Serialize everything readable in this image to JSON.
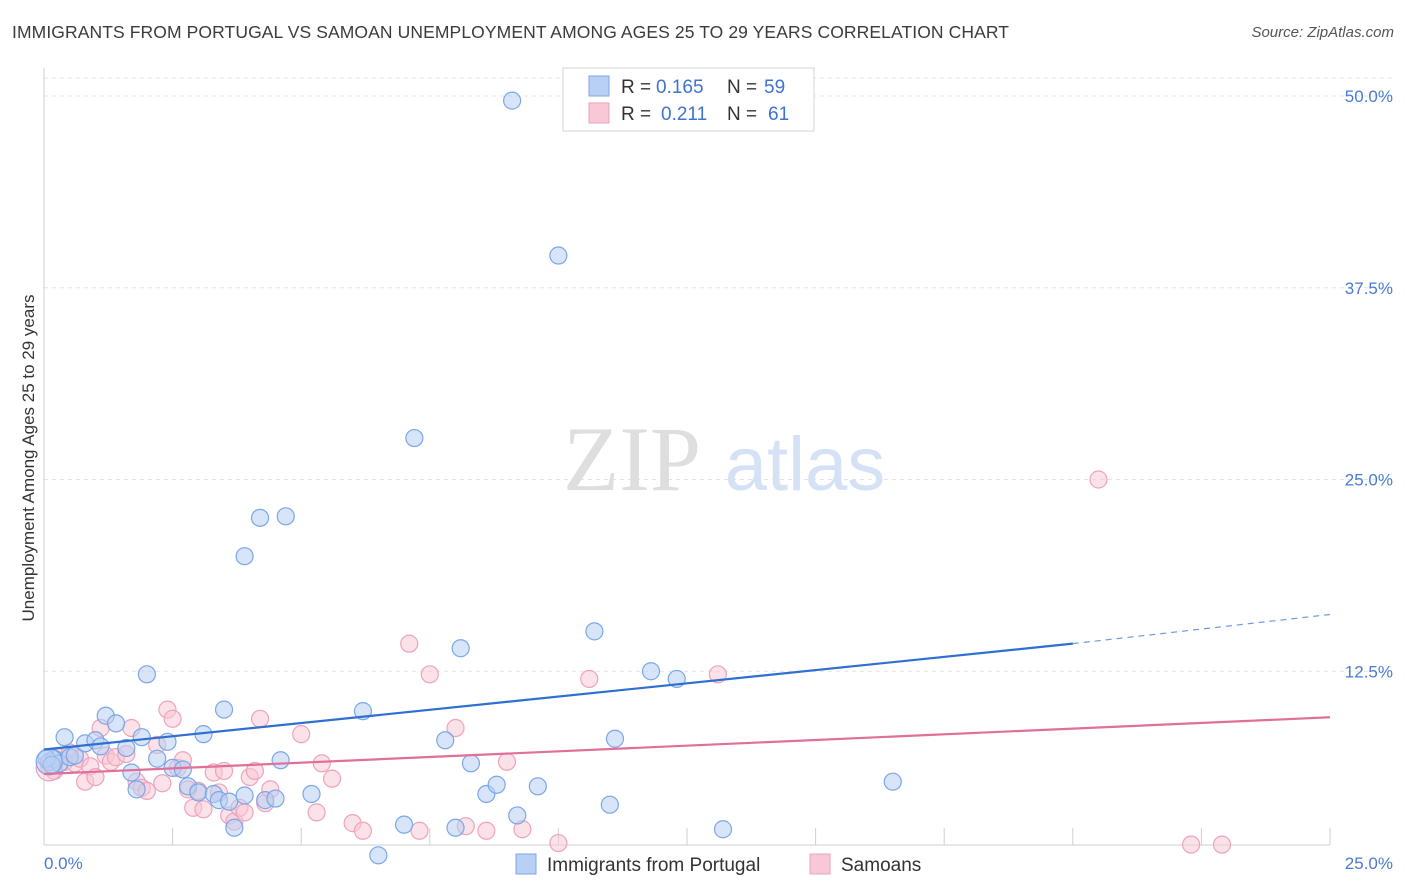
{
  "title": "IMMIGRANTS FROM PORTUGAL VS SAMOAN UNEMPLOYMENT AMONG AGES 25 TO 29 YEARS CORRELATION CHART",
  "source": "Source: ZipAtlas.com",
  "watermark": {
    "zip": "ZIP",
    "atlas": "atlas"
  },
  "chart_data": {
    "type": "scatter",
    "ylabel": "Unemployment Among Ages 25 to 29 years",
    "xlim": [
      0,
      25
    ],
    "ylim": [
      0,
      50
    ],
    "x_tick_labels": [
      "0.0%",
      "25.0%"
    ],
    "y_ticks": [
      12.5,
      25.0,
      37.5,
      50.0
    ],
    "y_tick_labels": [
      "12.5%",
      "25.0%",
      "37.5%",
      "50.0%"
    ],
    "legend": [
      {
        "r_label": "R =",
        "r_value": "0.165",
        "n_label": "N =",
        "n_value": "59"
      },
      {
        "r_label": "R =",
        "r_value": "0.211",
        "n_label": "N =",
        "n_value": "61"
      }
    ],
    "series": [
      {
        "name": "Immigrants from Portugal",
        "color": "#7aa7e8",
        "fill": "#b8d0f3",
        "line_color": "#2f6fd0",
        "trend": {
          "x0": 0,
          "y0": 7.4,
          "x1": 20,
          "y1": 14.3,
          "dash_to_x": 25,
          "dash_to_y": 16.2
        },
        "points": [
          [
            0.1,
            6.6
          ],
          [
            0.2,
            6.8
          ],
          [
            0.3,
            6.5
          ],
          [
            0.4,
            8.2
          ],
          [
            0.5,
            6.9
          ],
          [
            0.6,
            7.0
          ],
          [
            0.8,
            7.8
          ],
          [
            1.0,
            8.0
          ],
          [
            1.1,
            7.6
          ],
          [
            1.2,
            9.6
          ],
          [
            1.4,
            9.1
          ],
          [
            1.6,
            7.5
          ],
          [
            1.7,
            5.9
          ],
          [
            1.8,
            4.8
          ],
          [
            1.9,
            8.2
          ],
          [
            2.0,
            12.3
          ],
          [
            2.2,
            6.8
          ],
          [
            2.4,
            7.9
          ],
          [
            2.5,
            6.2
          ],
          [
            2.7,
            6.1
          ],
          [
            2.8,
            5.0
          ],
          [
            3.0,
            4.6
          ],
          [
            3.1,
            8.4
          ],
          [
            3.3,
            4.5
          ],
          [
            3.4,
            4.1
          ],
          [
            3.5,
            10.0
          ],
          [
            3.6,
            4.0
          ],
          [
            3.7,
            2.3
          ],
          [
            3.9,
            20.0
          ],
          [
            3.9,
            4.4
          ],
          [
            4.2,
            22.5
          ],
          [
            4.3,
            4.1
          ],
          [
            4.5,
            4.2
          ],
          [
            4.6,
            6.7
          ],
          [
            4.7,
            22.6
          ],
          [
            5.2,
            4.5
          ],
          [
            6.2,
            9.9
          ],
          [
            6.5,
            0.5
          ],
          [
            7.0,
            2.5
          ],
          [
            7.2,
            27.7
          ],
          [
            7.8,
            8.0
          ],
          [
            8.0,
            2.3
          ],
          [
            8.1,
            14.0
          ],
          [
            8.3,
            6.5
          ],
          [
            8.6,
            4.5
          ],
          [
            8.8,
            5.1
          ],
          [
            9.1,
            49.7
          ],
          [
            9.2,
            3.1
          ],
          [
            9.6,
            5.0
          ],
          [
            10.0,
            39.6
          ],
          [
            10.7,
            15.1
          ],
          [
            11.0,
            3.8
          ],
          [
            11.1,
            8.1
          ],
          [
            11.8,
            12.5
          ],
          [
            12.3,
            12.0
          ],
          [
            13.2,
            2.2
          ],
          [
            16.5,
            5.3
          ],
          [
            0.05,
            6.8
          ],
          [
            0.15,
            6.4
          ]
        ]
      },
      {
        "name": "Samoans",
        "color": "#eea3bb",
        "fill": "#f8c8d6",
        "line_color": "#e06f99",
        "trend": {
          "x0": 0,
          "y0": 5.8,
          "x1": 25,
          "y1": 9.5
        },
        "points": [
          [
            0.1,
            6.3
          ],
          [
            0.2,
            6.0
          ],
          [
            0.3,
            6.9
          ],
          [
            0.4,
            6.6
          ],
          [
            0.5,
            7.2
          ],
          [
            0.6,
            6.5
          ],
          [
            0.7,
            6.8
          ],
          [
            0.8,
            5.3
          ],
          [
            0.9,
            6.3
          ],
          [
            1.0,
            5.6
          ],
          [
            1.1,
            8.8
          ],
          [
            1.2,
            7.0
          ],
          [
            1.3,
            6.6
          ],
          [
            1.4,
            6.9
          ],
          [
            1.6,
            7.1
          ],
          [
            1.7,
            8.8
          ],
          [
            1.8,
            5.3
          ],
          [
            1.9,
            4.9
          ],
          [
            2.0,
            4.7
          ],
          [
            2.2,
            7.7
          ],
          [
            2.3,
            5.2
          ],
          [
            2.4,
            10.0
          ],
          [
            2.5,
            9.4
          ],
          [
            2.6,
            6.2
          ],
          [
            2.7,
            6.7
          ],
          [
            2.8,
            4.8
          ],
          [
            2.9,
            3.6
          ],
          [
            3.0,
            4.7
          ],
          [
            3.1,
            3.5
          ],
          [
            3.3,
            5.9
          ],
          [
            3.4,
            4.6
          ],
          [
            3.5,
            6.0
          ],
          [
            3.6,
            3.1
          ],
          [
            3.7,
            2.7
          ],
          [
            3.8,
            3.6
          ],
          [
            3.9,
            3.3
          ],
          [
            4.0,
            5.6
          ],
          [
            4.1,
            6.0
          ],
          [
            4.2,
            9.4
          ],
          [
            4.3,
            3.9
          ],
          [
            4.4,
            4.8
          ],
          [
            5.0,
            8.4
          ],
          [
            5.3,
            3.3
          ],
          [
            5.4,
            6.5
          ],
          [
            5.6,
            5.5
          ],
          [
            6.0,
            2.6
          ],
          [
            6.2,
            2.1
          ],
          [
            7.1,
            14.3
          ],
          [
            7.3,
            2.1
          ],
          [
            7.5,
            12.3
          ],
          [
            8.0,
            8.8
          ],
          [
            8.2,
            2.4
          ],
          [
            8.6,
            2.1
          ],
          [
            9.0,
            6.6
          ],
          [
            9.3,
            2.2
          ],
          [
            10.0,
            1.3
          ],
          [
            10.6,
            12.0
          ],
          [
            13.1,
            12.3
          ],
          [
            20.5,
            25.0
          ],
          [
            22.3,
            1.2
          ],
          [
            22.9,
            1.2
          ]
        ]
      }
    ]
  }
}
